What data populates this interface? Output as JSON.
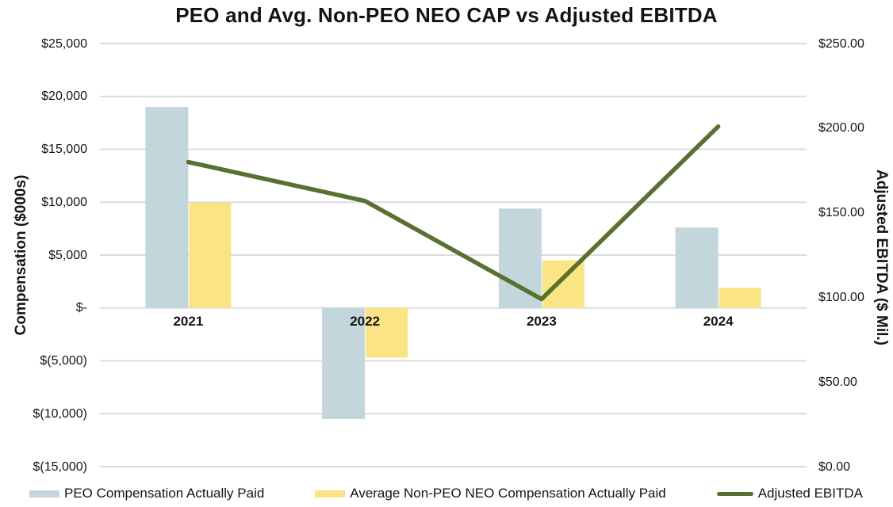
{
  "chart_data": {
    "type": "combo-bar-line",
    "title": "PEO and Avg. Non-PEO NEO CAP vs Adjusted EBITDA",
    "categories": [
      "2021",
      "2022",
      "2023",
      "2024"
    ],
    "series": [
      {
        "name": "PEO Compensation Actually Paid",
        "type": "bar",
        "axis": "left",
        "color": "#c2d6dc",
        "values": [
          19000,
          -10500,
          9400,
          7600
        ]
      },
      {
        "name": "Average Non-PEO NEO Compensation Actually Paid",
        "type": "bar",
        "axis": "left",
        "color": "#fae484",
        "values": [
          9950,
          -4700,
          4500,
          1900
        ]
      },
      {
        "name": "Adjusted EBITDA",
        "type": "line",
        "axis": "right",
        "color": "#5a7030",
        "values": [
          180,
          157,
          99,
          201
        ]
      }
    ],
    "left_axis": {
      "label": "Compensation ($000s)",
      "min": -15000,
      "max": 25000,
      "tick_step": 5000,
      "tick_labels": [
        "$25,000",
        "$20,000",
        "$15,000",
        "$10,000",
        "$5,000",
        "$-",
        "$(5,000)",
        "$(10,000)",
        "$(15,000)"
      ]
    },
    "right_axis": {
      "label": "Adjusted EBITDA ($ Mil.)",
      "min": 0,
      "max": 250,
      "tick_step": 50,
      "tick_labels": [
        "$250.00",
        "$200.00",
        "$150.00",
        "$100.00",
        "$50.00",
        "$0.00"
      ]
    },
    "grid": {
      "horizontal": true,
      "color": "#dcdcdc"
    },
    "legend_position": "bottom",
    "background": "#ffffff"
  }
}
